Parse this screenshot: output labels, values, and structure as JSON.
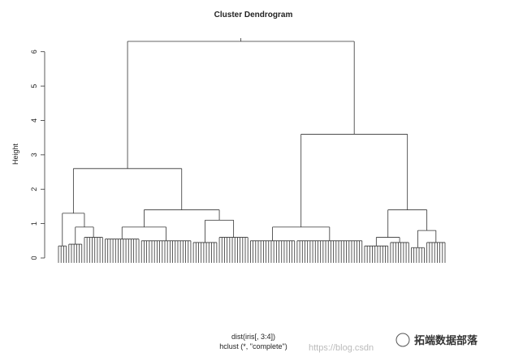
{
  "chart_data": {
    "type": "dendrogram",
    "title": "Cluster Dendrogram",
    "ylabel": "Height",
    "xlabel": "dist(iris[, 3:4])",
    "sublabel": "hclust (*, \"complete\")",
    "ylim": [
      0,
      6.3
    ],
    "yticks": [
      0,
      1,
      2,
      3,
      4,
      5,
      6
    ],
    "color": "#333333",
    "tree": {
      "height": 6.3,
      "children": [
        {
          "height": 2.6,
          "children": [
            {
              "height": 1.3,
              "children": [
                {
                  "height": 0.35,
                  "size": 4
                },
                {
                  "height": 0.9,
                  "children": [
                    {
                      "height": 0.4,
                      "size": 6
                    },
                    {
                      "height": 0.6,
                      "size": 8
                    }
                  ]
                }
              ]
            },
            {
              "height": 1.4,
              "children": [
                {
                  "height": 0.9,
                  "children": [
                    {
                      "height": 0.55,
                      "size": 14
                    },
                    {
                      "height": 0.5,
                      "size": 20
                    }
                  ]
                },
                {
                  "height": 1.1,
                  "children": [
                    {
                      "height": 0.45,
                      "size": 10
                    },
                    {
                      "height": 0.6,
                      "size": 12
                    }
                  ]
                }
              ]
            }
          ]
        },
        {
          "height": 3.6,
          "children": [
            {
              "height": 0.9,
              "children": [
                {
                  "height": 0.5,
                  "size": 18
                },
                {
                  "height": 0.5,
                  "size": 26
                }
              ]
            },
            {
              "height": 1.4,
              "children": [
                {
                  "height": 0.6,
                  "children": [
                    {
                      "height": 0.35,
                      "size": 10
                    },
                    {
                      "height": 0.45,
                      "size": 8
                    }
                  ]
                },
                {
                  "height": 0.8,
                  "children": [
                    {
                      "height": 0.3,
                      "size": 6
                    },
                    {
                      "height": 0.45,
                      "size": 8
                    }
                  ]
                }
              ]
            }
          ]
        }
      ]
    }
  },
  "watermark": {
    "url": "https://blog.csdn",
    "brand": "拓端数据部落"
  }
}
